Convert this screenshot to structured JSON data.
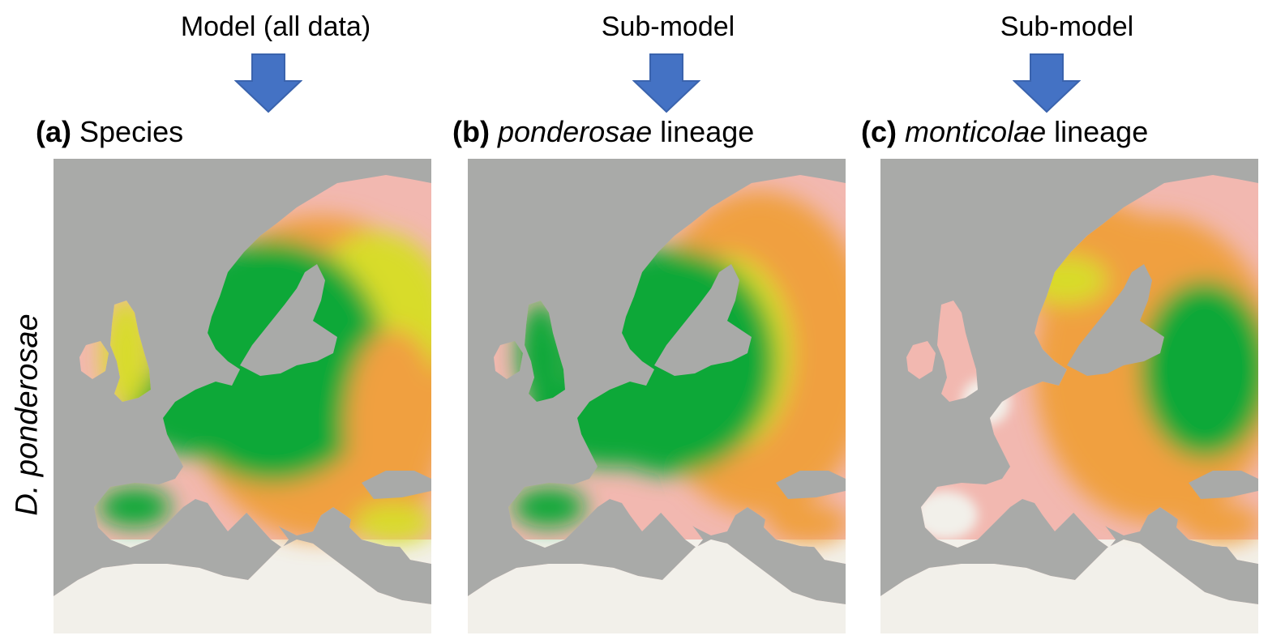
{
  "columns": [
    {
      "header": "Model (all data)",
      "letter": "(a)",
      "italic": "",
      "title": "Species"
    },
    {
      "header": "Sub-model",
      "letter": "(b)",
      "italic": "ponderosae",
      "title": " lineage"
    },
    {
      "header": "Sub-model",
      "letter": "(c)",
      "italic": "monticolae",
      "title": " lineage"
    }
  ],
  "row_label": "D. ponderosae",
  "colors": {
    "sea": "#a9aaa8",
    "arrow": "#4472c4",
    "arrow_edge": "#3a63ad",
    "unsuitable": "#f2f0ea",
    "low": "#f2b8b0",
    "medium": "#f0a040",
    "high_yellow": "#d8dc2c",
    "high_green": "#10a838"
  }
}
